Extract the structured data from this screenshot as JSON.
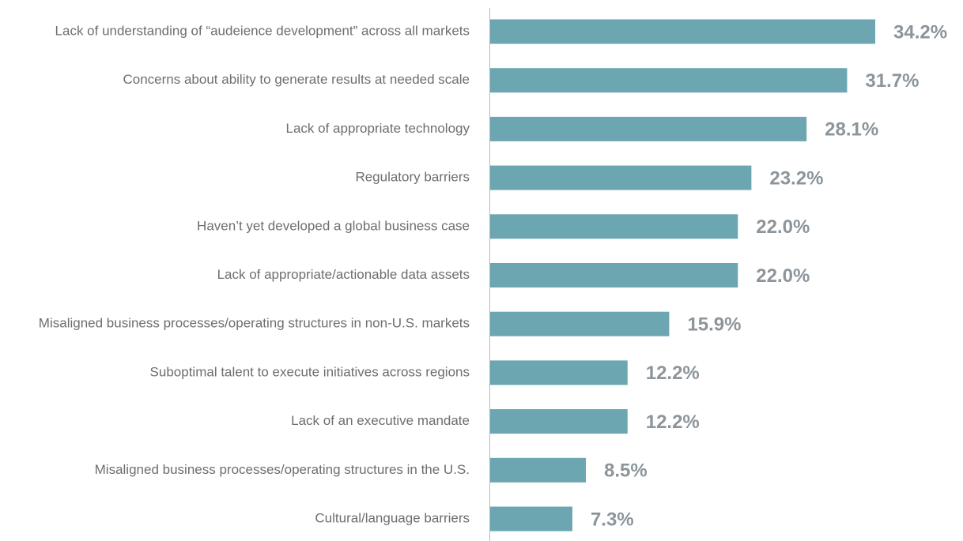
{
  "chart_data": {
    "type": "bar",
    "orientation": "horizontal",
    "color": "#6ba6b1",
    "categories": [
      "Lack of understanding of “audeience development” across all markets",
      "Concerns about ability to generate results at needed scale",
      "Lack of appropriate technology",
      "Regulatory barriers",
      "Haven’t yet developed a global business case",
      "Lack of appropriate/actionable data assets",
      "Misaligned business processes/operating structures in non-U.S. markets",
      "Suboptimal talent to execute initiatives across regions",
      "Lack of an executive mandate",
      "Misaligned business processes/operating structures in the U.S.",
      "Cultural/language barriers"
    ],
    "values": [
      34.2,
      31.7,
      28.1,
      23.2,
      22.0,
      22.0,
      15.9,
      12.2,
      12.2,
      8.5,
      7.3
    ],
    "value_labels": [
      "34.2%",
      "31.7%",
      "28.1%",
      "23.2%",
      "22.0%",
      "22.0%",
      "15.9%",
      "12.2%",
      "12.2%",
      "8.5%",
      "7.3%"
    ]
  }
}
